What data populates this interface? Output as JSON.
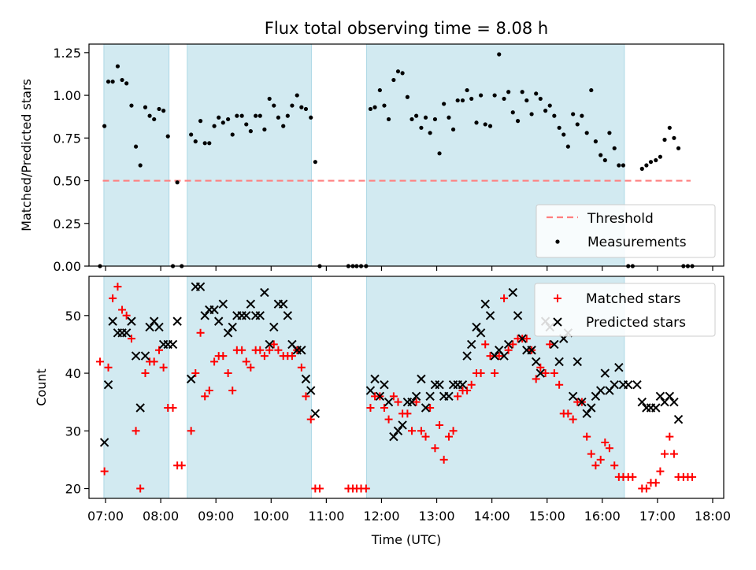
{
  "title": "Flux total observing time = 8.08 h",
  "colors": {
    "band": "#add8e6",
    "threshold": "#ff7f7f",
    "measurement": "#000000",
    "matched": "#ff0000",
    "predicted": "#000000"
  },
  "chart_data": [
    {
      "type": "scatter",
      "ylabel": "Matched/Predicted stars",
      "xlim": [
        6.7,
        18.2
      ],
      "ylim": [
        0,
        1.3
      ],
      "yticks": [
        0,
        0.25,
        0.5,
        0.75,
        1.0,
        1.25
      ],
      "ytick_labels": [
        "0.00",
        "0.25",
        "0.50",
        "0.75",
        "1.00",
        "1.25"
      ],
      "threshold": {
        "name": "Threshold",
        "value": 0.5,
        "x_range": [
          6.95,
          17.6
        ]
      },
      "shaded_intervals": [
        [
          6.97,
          8.15
        ],
        [
          8.48,
          10.73
        ],
        [
          11.73,
          16.4
        ]
      ],
      "legend": {
        "entries": [
          "Threshold",
          "Measurements"
        ],
        "position": "lower right"
      },
      "series": [
        {
          "name": "Measurements",
          "x": [
            6.9,
            6.98,
            7.05,
            7.13,
            7.22,
            7.3,
            7.38,
            7.47,
            7.55,
            7.63,
            7.72,
            7.8,
            7.88,
            7.97,
            8.05,
            8.13,
            8.22,
            8.3,
            8.38,
            8.55,
            8.63,
            8.72,
            8.8,
            8.88,
            8.97,
            9.05,
            9.13,
            9.22,
            9.3,
            9.38,
            9.47,
            9.55,
            9.63,
            9.72,
            9.8,
            9.88,
            9.97,
            10.05,
            10.13,
            10.22,
            10.3,
            10.38,
            10.47,
            10.55,
            10.63,
            10.72,
            10.8,
            10.88,
            11.4,
            11.48,
            11.55,
            11.63,
            11.72,
            11.8,
            11.88,
            11.97,
            12.05,
            12.13,
            12.22,
            12.3,
            12.38,
            12.47,
            12.55,
            12.63,
            12.72,
            12.8,
            12.88,
            12.97,
            13.05,
            13.13,
            13.22,
            13.3,
            13.38,
            13.47,
            13.55,
            13.63,
            13.72,
            13.8,
            13.88,
            13.97,
            14.05,
            14.13,
            14.22,
            14.3,
            14.38,
            14.47,
            14.55,
            14.63,
            14.72,
            14.8,
            14.88,
            14.97,
            15.05,
            15.13,
            15.22,
            15.3,
            15.38,
            15.47,
            15.55,
            15.63,
            15.72,
            15.8,
            15.88,
            15.97,
            16.05,
            16.13,
            16.22,
            16.3,
            16.38,
            16.47,
            16.55,
            16.72,
            16.8,
            16.88,
            16.97,
            17.05,
            17.13,
            17.22,
            17.3,
            17.38,
            17.47,
            17.55,
            17.63
          ],
          "y": [
            0.0,
            0.82,
            1.08,
            1.08,
            1.17,
            1.09,
            1.07,
            0.94,
            0.7,
            0.59,
            0.93,
            0.88,
            0.86,
            0.92,
            0.91,
            0.76,
            0.0,
            0.49,
            0.0,
            0.77,
            0.73,
            0.85,
            0.72,
            0.72,
            0.82,
            0.87,
            0.84,
            0.86,
            0.77,
            0.88,
            0.88,
            0.83,
            0.79,
            0.88,
            0.88,
            0.8,
            0.98,
            0.94,
            0.87,
            0.82,
            0.88,
            0.94,
            1.0,
            0.93,
            0.92,
            0.87,
            0.61,
            0.0,
            0.0,
            0.0,
            0.0,
            0.0,
            0.0,
            0.92,
            0.93,
            1.03,
            0.94,
            0.86,
            1.09,
            1.14,
            1.13,
            0.99,
            0.86,
            0.88,
            0.81,
            0.87,
            0.78,
            0.86,
            0.66,
            0.95,
            0.87,
            0.8,
            0.97,
            0.97,
            1.03,
            0.98,
            0.84,
            1.0,
            0.83,
            0.82,
            1.0,
            1.24,
            0.98,
            1.02,
            0.9,
            0.85,
            1.02,
            0.97,
            0.89,
            1.01,
            0.98,
            0.91,
            0.94,
            0.88,
            0.81,
            0.77,
            0.7,
            0.89,
            0.83,
            0.88,
            0.78,
            1.03,
            0.73,
            0.65,
            0.62,
            0.78,
            0.69,
            0.59,
            0.59,
            0.0,
            0.0,
            0.57,
            0.59,
            0.61,
            0.62,
            0.64,
            0.74,
            0.81,
            0.75,
            0.69,
            0.0,
            0.0,
            0.0
          ]
        }
      ]
    },
    {
      "type": "scatter",
      "ylabel": "Count",
      "xlabel": "Time (UTC)",
      "xlim": [
        6.7,
        18.2
      ],
      "ylim": [
        18.3,
        56.8
      ],
      "yticks": [
        20,
        30,
        40,
        50
      ],
      "ytick_labels": [
        "20",
        "30",
        "40",
        "50"
      ],
      "xticks": [
        7,
        8,
        9,
        10,
        11,
        12,
        13,
        14,
        15,
        16,
        17,
        18
      ],
      "xtick_labels": [
        "07:00",
        "08:00",
        "09:00",
        "10:00",
        "11:00",
        "12:00",
        "13:00",
        "14:00",
        "15:00",
        "16:00",
        "17:00",
        "18:00"
      ],
      "shaded_intervals": [
        [
          6.97,
          8.15
        ],
        [
          8.48,
          10.73
        ],
        [
          11.73,
          16.4
        ]
      ],
      "legend": {
        "entries": [
          "Matched stars",
          "Predicted stars"
        ],
        "position": "upper right"
      },
      "series": [
        {
          "name": "Matched stars",
          "x": [
            6.9,
            6.98,
            7.05,
            7.13,
            7.22,
            7.3,
            7.38,
            7.47,
            7.55,
            7.63,
            7.72,
            7.8,
            7.88,
            7.97,
            8.05,
            8.13,
            8.22,
            8.3,
            8.38,
            8.55,
            8.63,
            8.72,
            8.8,
            8.88,
            8.97,
            9.05,
            9.13,
            9.22,
            9.3,
            9.38,
            9.47,
            9.55,
            9.63,
            9.72,
            9.8,
            9.88,
            9.97,
            10.05,
            10.13,
            10.22,
            10.3,
            10.38,
            10.47,
            10.55,
            10.63,
            10.72,
            10.8,
            10.88,
            11.4,
            11.48,
            11.55,
            11.63,
            11.72,
            11.8,
            11.88,
            11.97,
            12.05,
            12.13,
            12.22,
            12.3,
            12.38,
            12.47,
            12.55,
            12.63,
            12.72,
            12.8,
            12.88,
            12.97,
            13.05,
            13.13,
            13.22,
            13.3,
            13.38,
            13.47,
            13.55,
            13.63,
            13.72,
            13.8,
            13.88,
            13.97,
            14.05,
            14.13,
            14.22,
            14.3,
            14.38,
            14.47,
            14.55,
            14.63,
            14.72,
            14.8,
            14.88,
            14.97,
            15.05,
            15.13,
            15.22,
            15.3,
            15.38,
            15.47,
            15.55,
            15.63,
            15.72,
            15.8,
            15.88,
            15.97,
            16.05,
            16.13,
            16.22,
            16.3,
            16.38,
            16.47,
            16.55,
            16.72,
            16.8,
            16.88,
            16.97,
            17.05,
            17.13,
            17.22,
            17.3,
            17.38,
            17.47,
            17.55,
            17.63
          ],
          "y": [
            42,
            23,
            41,
            53,
            55,
            51,
            50,
            46,
            30,
            20,
            40,
            42,
            42,
            44,
            41,
            34,
            34,
            24,
            24,
            30,
            40,
            47,
            36,
            37,
            42,
            43,
            43,
            40,
            37,
            44,
            44,
            42,
            41,
            44,
            44,
            43,
            44,
            45,
            44,
            43,
            43,
            43,
            44,
            41,
            36,
            32,
            20,
            20,
            20,
            20,
            20,
            20,
            20,
            34,
            36,
            36,
            34,
            32,
            36,
            35,
            33,
            33,
            30,
            35,
            30,
            29,
            34,
            27,
            31,
            25,
            29,
            30,
            36,
            37,
            37,
            38,
            40,
            40,
            45,
            43,
            40,
            43,
            53,
            44,
            45,
            46,
            46,
            46,
            44,
            39,
            41,
            40,
            45,
            40,
            38,
            33,
            33,
            32,
            35,
            35,
            29,
            26,
            24,
            25,
            28,
            27,
            24,
            22,
            22,
            22,
            22,
            20,
            20,
            21,
            21,
            23,
            26,
            29,
            26,
            22,
            22,
            22,
            22
          ]
        },
        {
          "name": "Predicted stars",
          "x": [
            6.98,
            7.05,
            7.13,
            7.22,
            7.3,
            7.38,
            7.47,
            7.55,
            7.63,
            7.72,
            7.8,
            7.88,
            7.97,
            8.05,
            8.13,
            8.22,
            8.3,
            8.55,
            8.63,
            8.72,
            8.8,
            8.88,
            8.97,
            9.05,
            9.13,
            9.22,
            9.3,
            9.38,
            9.47,
            9.55,
            9.63,
            9.72,
            9.8,
            9.88,
            9.97,
            10.05,
            10.13,
            10.22,
            10.3,
            10.38,
            10.47,
            10.55,
            10.63,
            10.72,
            10.8,
            11.8,
            11.88,
            11.97,
            12.05,
            12.13,
            12.22,
            12.3,
            12.38,
            12.47,
            12.55,
            12.63,
            12.72,
            12.8,
            12.88,
            12.97,
            13.05,
            13.13,
            13.22,
            13.3,
            13.38,
            13.47,
            13.55,
            13.63,
            13.72,
            13.8,
            13.88,
            13.97,
            14.05,
            14.13,
            14.22,
            14.3,
            14.38,
            14.47,
            14.55,
            14.63,
            14.72,
            14.8,
            14.88,
            14.97,
            15.05,
            15.13,
            15.22,
            15.3,
            15.38,
            15.47,
            15.55,
            15.63,
            15.72,
            15.8,
            15.88,
            15.97,
            16.05,
            16.13,
            16.22,
            16.3,
            16.38,
            16.47,
            16.63,
            16.72,
            16.8,
            16.88,
            16.97,
            17.05,
            17.13,
            17.22,
            17.3,
            17.38
          ],
          "y": [
            28,
            38,
            49,
            47,
            47,
            47,
            49,
            43,
            34,
            43,
            48,
            49,
            48,
            45,
            45,
            45,
            49,
            39,
            55,
            55,
            50,
            51,
            51,
            49,
            52,
            47,
            48,
            50,
            50,
            50,
            52,
            50,
            50,
            54,
            45,
            48,
            52,
            52,
            50,
            45,
            44,
            44,
            39,
            37,
            33,
            37,
            39,
            36,
            38,
            35,
            29,
            30,
            31,
            35,
            35,
            36,
            39,
            34,
            36,
            38,
            38,
            36,
            36,
            38,
            38,
            38,
            43,
            45,
            48,
            47,
            52,
            50,
            43,
            44,
            43,
            45,
            54,
            50,
            46,
            44,
            44,
            42,
            40,
            49,
            48,
            45,
            42,
            46,
            47,
            36,
            42,
            35,
            33,
            34,
            36,
            37,
            40,
            37,
            38,
            41,
            38,
            38,
            38,
            35,
            34,
            34,
            34,
            36,
            35,
            36,
            35,
            32
          ]
        }
      ]
    }
  ]
}
